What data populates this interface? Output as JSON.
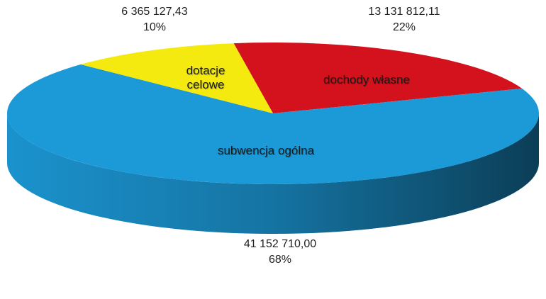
{
  "chart_data": {
    "type": "pie3d",
    "categories": [
      "dochody własne",
      "subwencja ogólna",
      "dotacje celowe"
    ],
    "values": [
      13131812.11,
      41152710.0,
      6365127.43
    ],
    "value_labels": [
      "13 131 812,11",
      "41 152 710,00",
      "6 365 127,43"
    ],
    "percent_labels": [
      "22%",
      "68%",
      "10%"
    ],
    "colors": [
      "#d4121e",
      "#1c9ad8",
      "#f4ea10"
    ]
  }
}
